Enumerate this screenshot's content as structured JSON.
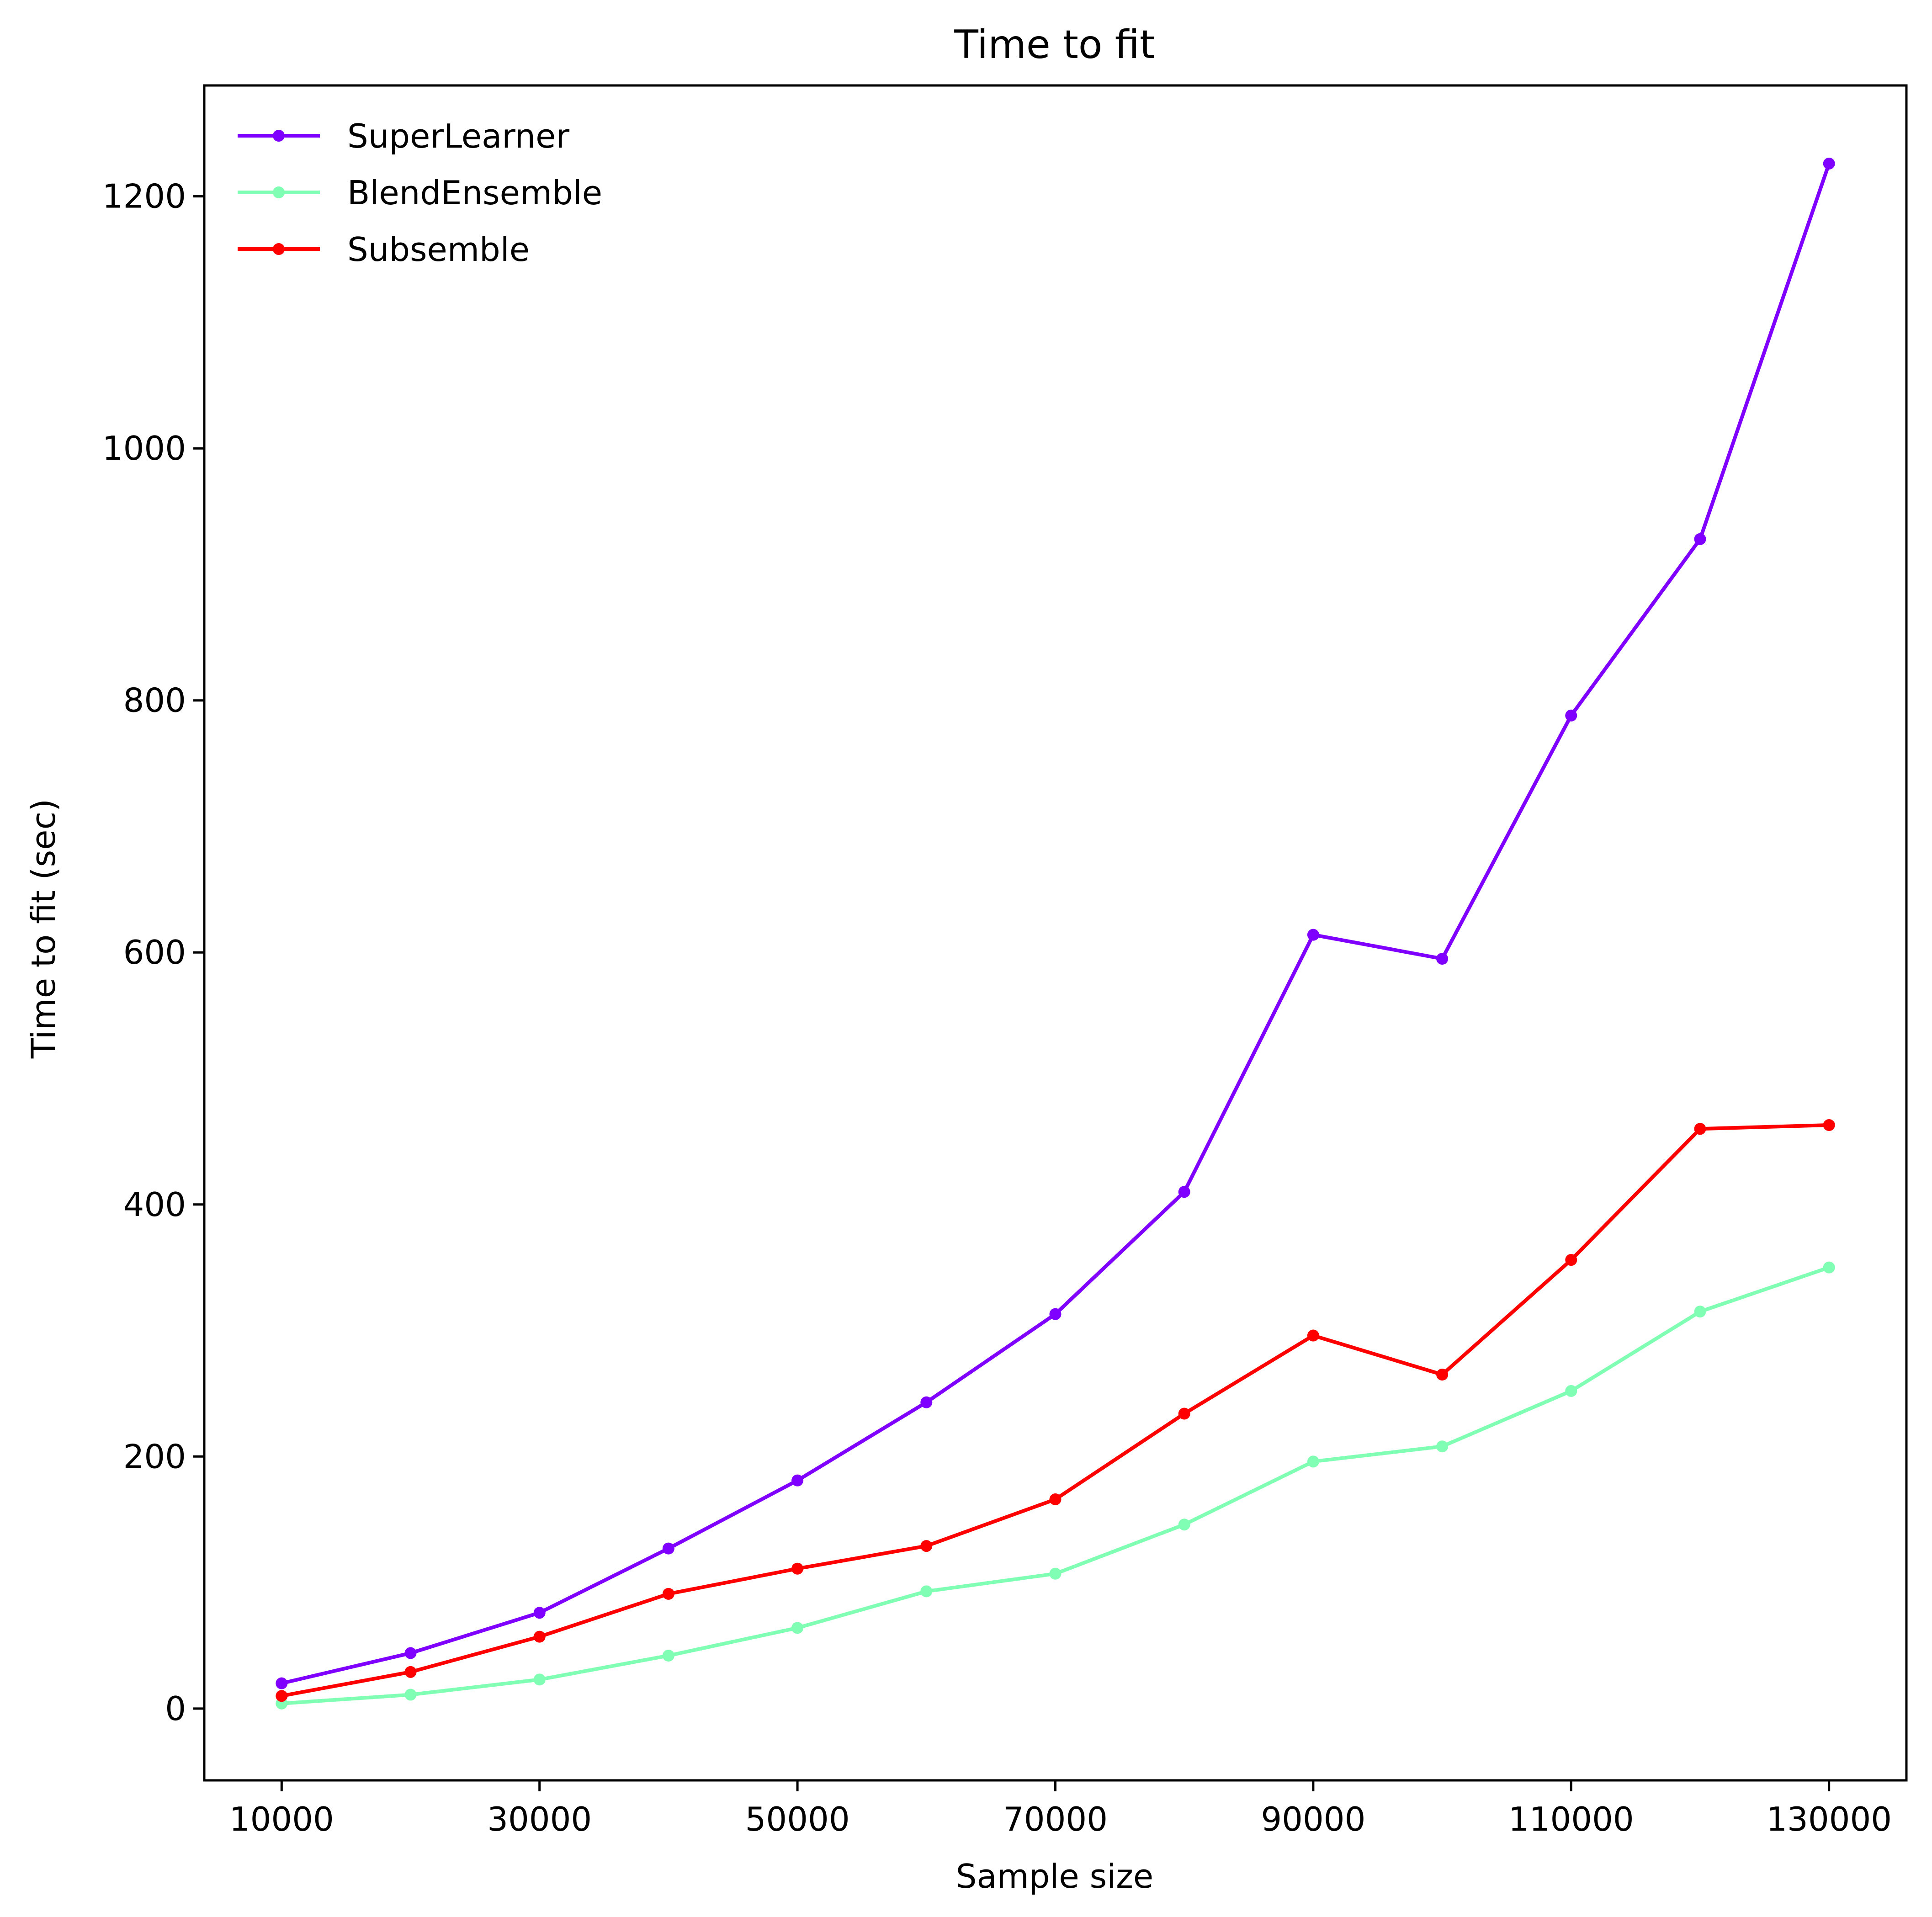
{
  "chart_data": {
    "type": "line",
    "title": "Time to fit",
    "xlabel": "Sample size",
    "ylabel": "Time to fit (sec)",
    "x": [
      10000,
      20000,
      30000,
      40000,
      50000,
      60000,
      70000,
      80000,
      90000,
      100000,
      110000,
      120000,
      130000
    ],
    "xticks": [
      "10000",
      "30000",
      "50000",
      "70000",
      "90000",
      "110000",
      "130000"
    ],
    "xtick_values": [
      10000,
      30000,
      50000,
      70000,
      90000,
      110000,
      130000
    ],
    "yticks": [
      "0",
      "200",
      "400",
      "600",
      "800",
      "1000",
      "1200"
    ],
    "ytick_values": [
      0,
      200,
      400,
      600,
      800,
      1000,
      1200
    ],
    "xlim": [
      4000,
      136000
    ],
    "ylim": [
      -57,
      1288
    ],
    "grid": false,
    "legend_position": "top-left",
    "series": [
      {
        "name": "SuperLearner",
        "color": "#8000ff",
        "marker": "circle",
        "values": [
          20,
          44,
          76,
          127,
          181,
          243,
          313,
          410,
          614,
          595,
          788,
          928,
          1226
        ]
      },
      {
        "name": "BlendEnsemble",
        "color": "#80ffb4",
        "marker": "circle",
        "values": [
          4,
          11,
          23,
          42,
          64,
          93,
          107,
          146,
          196,
          208,
          252,
          315,
          350
        ]
      },
      {
        "name": "Subsemble",
        "color": "#ff0000",
        "marker": "circle",
        "values": [
          10,
          29,
          57,
          91,
          111,
          129,
          166,
          234,
          296,
          265,
          356,
          460,
          463
        ]
      }
    ]
  }
}
